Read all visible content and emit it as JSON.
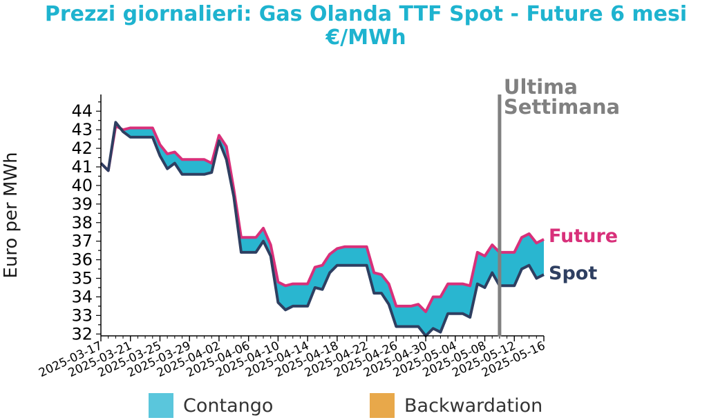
{
  "title_line1": "Prezzi giornalieri: Gas Olanda TTF Spot - Future 6 mesi",
  "title_line2": "€/MWh",
  "colors": {
    "title": "#1eb3cf",
    "contango": "#29b6d0",
    "backwardation": "#e8a84a",
    "future": "#d8307a",
    "spot": "#2e3f61",
    "marker": "#808080"
  },
  "legend": {
    "contango": "Contango",
    "backwardation": "Backwardation"
  },
  "chart_data": {
    "type": "area",
    "ylabel": "Euro per MWh",
    "ylim": [
      31.9,
      44.9
    ],
    "yticks": [
      32,
      33,
      34,
      35,
      36,
      37,
      38,
      39,
      40,
      41,
      42,
      43,
      44
    ],
    "xticks": [
      "2025-03-17",
      "2025-03-21",
      "2025-03-25",
      "2025-03-29",
      "2025-04-02",
      "2025-04-06",
      "2025-04-10",
      "2025-04-14",
      "2025-04-18",
      "2025-04-22",
      "2025-04-26",
      "2025-04-30",
      "2025-05-04",
      "2025-05-08",
      "2025-05-12",
      "2025-05-16"
    ],
    "xlim": [
      "2025-03-17",
      "2025-05-16"
    ],
    "series": [
      {
        "name": "Future",
        "points": [
          [
            "2025-03-17",
            41.2
          ],
          [
            "2025-03-18",
            40.8
          ],
          [
            "2025-03-19",
            43.2
          ],
          [
            "2025-03-20",
            43.0
          ],
          [
            "2025-03-21",
            43.1
          ],
          [
            "2025-03-24",
            43.1
          ],
          [
            "2025-03-25",
            42.2
          ],
          [
            "2025-03-26",
            41.7
          ],
          [
            "2025-03-27",
            41.8
          ],
          [
            "2025-03-28",
            41.4
          ],
          [
            "2025-03-31",
            41.4
          ],
          [
            "2025-04-01",
            41.2
          ],
          [
            "2025-04-02",
            42.7
          ],
          [
            "2025-04-03",
            42.1
          ],
          [
            "2025-04-04",
            39.8
          ],
          [
            "2025-04-05",
            37.2
          ],
          [
            "2025-04-06",
            37.2
          ],
          [
            "2025-04-07",
            37.2
          ],
          [
            "2025-04-08",
            37.7
          ],
          [
            "2025-04-09",
            36.8
          ],
          [
            "2025-04-10",
            34.8
          ],
          [
            "2025-04-11",
            34.6
          ],
          [
            "2025-04-12",
            34.7
          ],
          [
            "2025-04-14",
            34.7
          ],
          [
            "2025-04-15",
            35.6
          ],
          [
            "2025-04-16",
            35.7
          ],
          [
            "2025-04-17",
            36.3
          ],
          [
            "2025-04-18",
            36.6
          ],
          [
            "2025-04-19",
            36.7
          ],
          [
            "2025-04-22",
            36.7
          ],
          [
            "2025-04-23",
            35.3
          ],
          [
            "2025-04-24",
            35.2
          ],
          [
            "2025-04-25",
            34.7
          ],
          [
            "2025-04-26",
            33.5
          ],
          [
            "2025-04-27",
            33.5
          ],
          [
            "2025-04-28",
            33.5
          ],
          [
            "2025-04-29",
            33.6
          ],
          [
            "2025-04-30",
            33.2
          ],
          [
            "2025-05-01",
            34.0
          ],
          [
            "2025-05-02",
            34.0
          ],
          [
            "2025-05-03",
            34.7
          ],
          [
            "2025-05-04",
            34.7
          ],
          [
            "2025-05-05",
            34.7
          ],
          [
            "2025-05-06",
            34.6
          ],
          [
            "2025-05-07",
            36.4
          ],
          [
            "2025-05-08",
            36.2
          ],
          [
            "2025-05-09",
            36.8
          ],
          [
            "2025-05-10",
            36.4
          ],
          [
            "2025-05-12",
            36.4
          ],
          [
            "2025-05-13",
            37.2
          ],
          [
            "2025-05-14",
            37.4
          ],
          [
            "2025-05-15",
            36.9
          ],
          [
            "2025-05-16",
            37.1
          ]
        ]
      },
      {
        "name": "Spot",
        "points": [
          [
            "2025-03-17",
            41.2
          ],
          [
            "2025-03-18",
            40.8
          ],
          [
            "2025-03-19",
            43.4
          ],
          [
            "2025-03-20",
            42.9
          ],
          [
            "2025-03-21",
            42.6
          ],
          [
            "2025-03-24",
            42.6
          ],
          [
            "2025-03-25",
            41.6
          ],
          [
            "2025-03-26",
            40.9
          ],
          [
            "2025-03-27",
            41.2
          ],
          [
            "2025-03-28",
            40.6
          ],
          [
            "2025-03-31",
            40.6
          ],
          [
            "2025-04-01",
            40.7
          ],
          [
            "2025-04-02",
            42.4
          ],
          [
            "2025-04-03",
            41.4
          ],
          [
            "2025-04-04",
            39.4
          ],
          [
            "2025-04-05",
            36.4
          ],
          [
            "2025-04-06",
            36.4
          ],
          [
            "2025-04-07",
            36.4
          ],
          [
            "2025-04-08",
            37.0
          ],
          [
            "2025-04-09",
            36.2
          ],
          [
            "2025-04-10",
            33.7
          ],
          [
            "2025-04-11",
            33.3
          ],
          [
            "2025-04-12",
            33.5
          ],
          [
            "2025-04-14",
            33.5
          ],
          [
            "2025-04-15",
            34.5
          ],
          [
            "2025-04-16",
            34.4
          ],
          [
            "2025-04-17",
            35.3
          ],
          [
            "2025-04-18",
            35.7
          ],
          [
            "2025-04-19",
            35.7
          ],
          [
            "2025-04-22",
            35.7
          ],
          [
            "2025-04-23",
            34.2
          ],
          [
            "2025-04-24",
            34.2
          ],
          [
            "2025-04-25",
            33.6
          ],
          [
            "2025-04-26",
            32.4
          ],
          [
            "2025-04-27",
            32.4
          ],
          [
            "2025-04-28",
            32.4
          ],
          [
            "2025-04-29",
            32.4
          ],
          [
            "2025-04-30",
            31.9
          ],
          [
            "2025-05-01",
            32.3
          ],
          [
            "2025-05-02",
            32.1
          ],
          [
            "2025-05-03",
            33.1
          ],
          [
            "2025-05-04",
            33.1
          ],
          [
            "2025-05-05",
            33.1
          ],
          [
            "2025-05-06",
            32.9
          ],
          [
            "2025-05-07",
            34.7
          ],
          [
            "2025-05-08",
            34.5
          ],
          [
            "2025-05-09",
            35.3
          ],
          [
            "2025-05-10",
            34.6
          ],
          [
            "2025-05-12",
            34.6
          ],
          [
            "2025-05-13",
            35.5
          ],
          [
            "2025-05-14",
            35.7
          ],
          [
            "2025-05-15",
            35.0
          ],
          [
            "2025-05-16",
            35.2
          ]
        ]
      }
    ],
    "marker": {
      "date": "2025-05-10",
      "label_line1": "Ultima",
      "label_line2": "Settimana"
    },
    "fill": "contango",
    "legend_position": "bottom"
  }
}
